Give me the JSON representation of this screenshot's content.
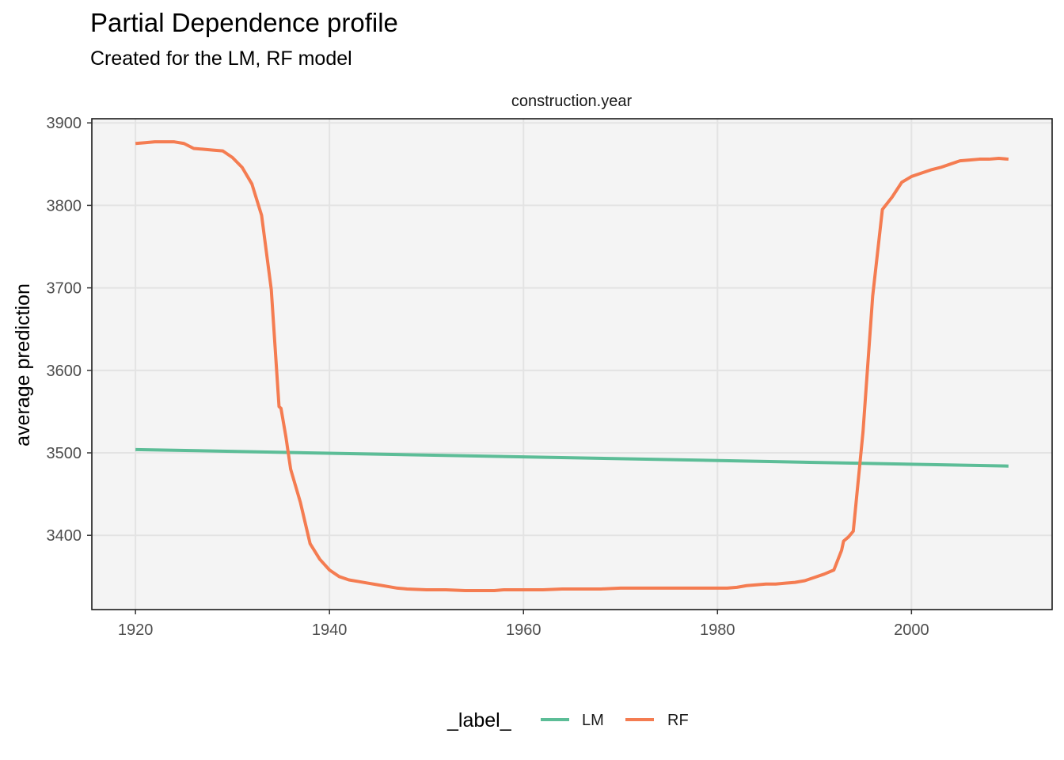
{
  "chart_data": {
    "type": "line",
    "title": "Partial Dependence profile",
    "subtitle": "Created for the LM, RF model",
    "facet_label": "construction.year",
    "xlabel": "",
    "ylabel": "average prediction",
    "xlim": [
      1915.5,
      2014.5
    ],
    "ylim": [
      3310,
      3905
    ],
    "x_ticks": [
      1920,
      1940,
      1960,
      1980,
      2000
    ],
    "y_ticks": [
      3400,
      3500,
      3600,
      3700,
      3800,
      3900
    ],
    "grid": true,
    "legend_title": "_label_",
    "legend_position": "bottom",
    "series": [
      {
        "name": "LM",
        "color": "#5cbd97",
        "x": [
          1920,
          2010
        ],
        "y": [
          3504,
          3484
        ]
      },
      {
        "name": "RF",
        "color": "#f47c51",
        "x": [
          1920,
          1921,
          1922,
          1923,
          1924,
          1925,
          1926,
          1927,
          1928,
          1929,
          1930,
          1931,
          1932,
          1933,
          1934,
          1934.8,
          1935,
          1935.5,
          1936,
          1937,
          1938,
          1939,
          1940,
          1941,
          1942,
          1943,
          1944,
          1945,
          1946,
          1947,
          1948,
          1950,
          1952,
          1954,
          1956,
          1957,
          1958,
          1960,
          1962,
          1964,
          1966,
          1968,
          1970,
          1972,
          1974,
          1976,
          1978,
          1980,
          1981,
          1982,
          1983,
          1984,
          1985,
          1986,
          1987,
          1988,
          1989,
          1990,
          1991,
          1992,
          1992.8,
          1993,
          1993.5,
          1994,
          1995,
          1996,
          1997,
          1998,
          1999,
          2000,
          2001,
          2002,
          2003,
          2004,
          2005,
          2006,
          2007,
          2008,
          2009,
          2010
        ],
        "y": [
          3875,
          3876,
          3877,
          3877,
          3877,
          3875,
          3869,
          3868,
          3867,
          3866,
          3858,
          3846,
          3826,
          3788,
          3698,
          3556,
          3554,
          3520,
          3480,
          3440,
          3390,
          3371,
          3358,
          3350,
          3346,
          3344,
          3342,
          3340,
          3338,
          3336,
          3335,
          3334,
          3334,
          3333,
          3333,
          3333,
          3334,
          3334,
          3334,
          3335,
          3335,
          3335,
          3336,
          3336,
          3336,
          3336,
          3336,
          3336,
          3336,
          3337,
          3339,
          3340,
          3341,
          3341,
          3342,
          3343,
          3345,
          3349,
          3353,
          3358,
          3382,
          3393,
          3398,
          3405,
          3525,
          3690,
          3795,
          3810,
          3828,
          3835,
          3839,
          3843,
          3846,
          3850,
          3854,
          3855,
          3856,
          3856,
          3857,
          3856
        ]
      }
    ]
  }
}
